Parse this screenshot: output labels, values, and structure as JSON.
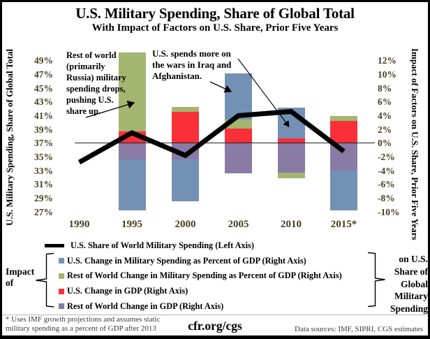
{
  "title": "U.S. Military Spending, Share of Global Total",
  "subtitle": "With Impact of Factors on U.S. Share, Prior Five Years",
  "left_axis_title": "U.S. Military Spending, Share of Global Total",
  "right_axis_title": "Impact of Factors on U.S. Share, Prior Five Years",
  "annotations": {
    "rest_of_world": "Rest of world\n(primarily\nRussia) military\nspending drops,\npushing U.S.\nshare up.",
    "iraq_afghanistan": "U.S. spends more on\nthe wars in Iraq and\nAfghanistan."
  },
  "legend": {
    "line_label": "U.S. Share of World Military Spending (Left Axis)",
    "items": [
      {
        "key": "blue",
        "label": "U.S. Change in Military Spending as Percent of GDP (Right Axis)"
      },
      {
        "key": "green",
        "label": "Rest of World Change in Military Spending as Percent of GDP (Right Axis)"
      },
      {
        "key": "red",
        "label": "U.S. Change in GDP (Right Axis)"
      },
      {
        "key": "purple",
        "label": "Rest of World Change in GDP (Right Axis)"
      }
    ],
    "impact_of": "Impact\nof",
    "on_us_share": "on U.S.\nShare of\nGlobal\nMilitary\nSpending"
  },
  "footer": {
    "footnote": "* Uses IMF growth projections and assumes static\nmilitary spending as a percent of GDP after 2013",
    "site": "cfr.org/cgs",
    "sources": "Data sources: IMF, SIPRI, CGS estimates"
  },
  "colors": {
    "blue": "#7391B5",
    "green": "#A4B570",
    "red": "#FB2F38",
    "purple": "#8A7AA6",
    "line": "#000000",
    "tick_text": "#45411C"
  },
  "chart_data": {
    "type": "bar+line combo (stacked bars on right axis, line on left axis)",
    "categories": [
      "1990",
      "1995",
      "2000",
      "2005",
      "2010",
      "2015*"
    ],
    "left_axis": {
      "ticks": [
        "49%",
        "47%",
        "45%",
        "43%",
        "41%",
        "39%",
        "37%",
        "35%",
        "33%",
        "31%",
        "29%",
        "27%"
      ],
      "range_pct": [
        26,
        50
      ]
    },
    "right_axis": {
      "ticks": [
        "12%",
        "10%",
        "8%",
        "6%",
        "4%",
        "2%",
        "0%",
        "-2%",
        "-4%",
        "-6%",
        "-8%",
        "-10%"
      ],
      "range_pct": [
        -11,
        13
      ]
    },
    "line_series": {
      "name": "U.S. Share of World Military Spending (Left Axis)",
      "axis": "left",
      "values_pct": [
        34.2,
        38.5,
        35.2,
        41.0,
        41.6,
        35.8
      ]
    },
    "bar_stacks": [
      {
        "category": "1995",
        "pos": [
          {
            "key": "red",
            "value": 1.7
          },
          {
            "key": "green",
            "value": 11.5
          }
        ],
        "neg": [
          {
            "key": "purple",
            "value": 2.4
          },
          {
            "key": "blue",
            "value": 7.4
          }
        ]
      },
      {
        "category": "2000",
        "pos": [
          {
            "key": "red",
            "value": 4.5
          },
          {
            "key": "green",
            "value": 0.8
          }
        ],
        "neg": [
          {
            "key": "purple",
            "value": 2.4
          },
          {
            "key": "blue",
            "value": 6.1
          }
        ]
      },
      {
        "category": "2005",
        "pos": [
          {
            "key": "red",
            "value": 2.1
          },
          {
            "key": "green",
            "value": 1.3
          },
          {
            "key": "blue",
            "value": 6.7
          }
        ],
        "neg": [
          {
            "key": "purple",
            "value": 4.4
          }
        ]
      },
      {
        "category": "2010",
        "pos": [
          {
            "key": "red",
            "value": 0.7
          },
          {
            "key": "blue",
            "value": 4.5
          }
        ],
        "neg": [
          {
            "key": "purple",
            "value": 4.3
          },
          {
            "key": "green",
            "value": 0.8
          }
        ]
      },
      {
        "category": "2015*",
        "pos": [
          {
            "key": "red",
            "value": 3.2
          },
          {
            "key": "green",
            "value": 0.7
          }
        ],
        "neg": [
          {
            "key": "purple",
            "value": 4.0
          },
          {
            "key": "blue",
            "value": 5.8
          }
        ]
      }
    ],
    "series_labels": {
      "line": "U.S. Share of World Military Spending (Left Axis)",
      "blue": "U.S. Change in Military Spending as Percent of GDP (Right Axis)",
      "green": "Rest of World Change in Military Spending as Percent of GDP (Right Axis)",
      "red": "U.S. Change in GDP (Right Axis)",
      "purple": "Rest of World Change in GDP (Right Axis)"
    },
    "legend_position": "bottom",
    "grid": false
  }
}
